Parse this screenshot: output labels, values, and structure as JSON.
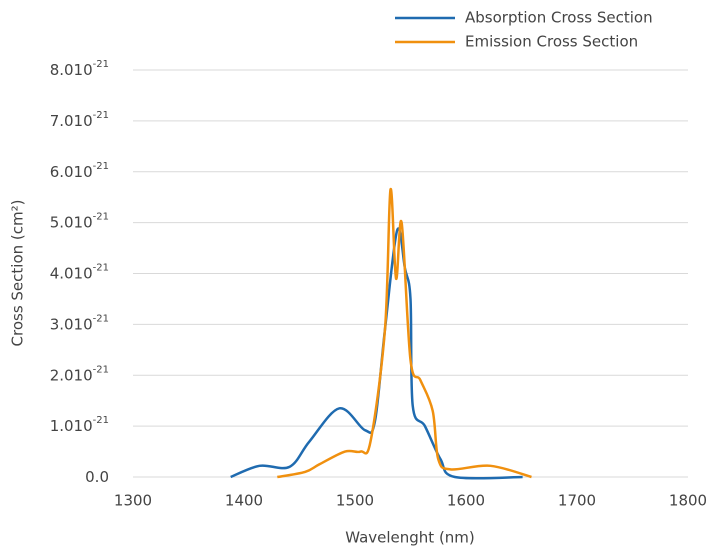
{
  "chart_data": {
    "type": "line",
    "xlabel": "Wavelenght (nm)",
    "ylabel": "Cross Section (cm²)",
    "xlim": [
      1300,
      1800
    ],
    "xticks": [
      1300,
      1400,
      1500,
      1600,
      1700,
      1800
    ],
    "ylim": [
      0,
      8e-21
    ],
    "yticks": [
      {
        "value": 0,
        "label": "0.0"
      },
      {
        "value": 1e-21,
        "label": "1.010",
        "exponent": "-21"
      },
      {
        "value": 2e-21,
        "label": "2.010",
        "exponent": "-21"
      },
      {
        "value": 3e-21,
        "label": "3.010",
        "exponent": "-21"
      },
      {
        "value": 4e-21,
        "label": "4.010",
        "exponent": "-21"
      },
      {
        "value": 5e-21,
        "label": "5.010",
        "exponent": "-21"
      },
      {
        "value": 6e-21,
        "label": "6.010",
        "exponent": "-21"
      },
      {
        "value": 7e-21,
        "label": "7.010",
        "exponent": "-21"
      },
      {
        "value": 8e-21,
        "label": "8.010",
        "exponent": "-21"
      }
    ],
    "grid": true,
    "legend": "top-right",
    "series": [
      {
        "name": "Absorption Cross Section",
        "color": "#1f6bb0",
        "x": [
          1388,
          1414,
          1441,
          1459,
          1486,
          1509,
          1518,
          1527,
          1538,
          1545,
          1550,
          1552,
          1563,
          1577,
          1590,
          1651
        ],
        "values": [
          0,
          2.2e-22,
          2e-22,
          7e-22,
          1.35e-21,
          9.2e-22,
          1.1e-21,
          2.9e-21,
          4.85e-21,
          4.1e-21,
          3.5e-21,
          1.4e-21,
          1e-21,
          3.5e-22,
          0,
          0
        ]
      },
      {
        "name": "Emission Cross Section",
        "color": "#f0900f",
        "x": [
          1430,
          1455,
          1468,
          1491,
          1505,
          1514,
          1527,
          1532,
          1537,
          1542,
          1550,
          1559,
          1570,
          1575,
          1586,
          1622,
          1659
        ],
        "values": [
          0,
          1e-22,
          2.5e-22,
          5e-22,
          5e-22,
          7e-22,
          2.9e-21,
          5.65e-21,
          3.9e-21,
          5e-21,
          2.3e-21,
          1.9e-21,
          1.3e-21,
          3.5e-22,
          1.5e-22,
          2.2e-22,
          0
        ]
      }
    ]
  }
}
